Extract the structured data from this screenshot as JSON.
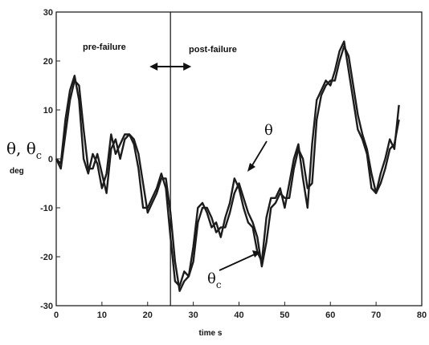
{
  "chart_data": {
    "type": "line",
    "xlabel": "time s",
    "ylabel_symbol": "θ, θ",
    "ylabel_subscript": "c",
    "ylabel_unit": "deg",
    "xlim": [
      0,
      80
    ],
    "ylim": [
      -30,
      30
    ],
    "x_ticks": [
      "0",
      "10",
      "20",
      "30",
      "40",
      "50",
      "60",
      "70",
      "80"
    ],
    "y_ticks": [
      "30",
      "20",
      "10",
      "0",
      "-10",
      "-20",
      "-30"
    ],
    "grid": false,
    "annotations": {
      "pre_failure": "pre-failure",
      "post_failure": "post-failure",
      "failure_time": 25,
      "theta_label": "θ",
      "theta_c_label": "θ",
      "theta_c_subscript": "c"
    },
    "series": [
      {
        "name": "θ",
        "x": [
          0,
          1,
          2,
          3,
          4,
          5,
          6,
          7,
          8,
          9,
          10,
          11,
          12,
          13,
          14,
          15,
          16,
          17,
          18,
          19,
          20,
          21,
          22,
          23,
          24,
          25,
          26,
          27,
          28,
          29,
          30,
          31,
          32,
          33,
          34,
          35,
          36,
          37,
          38,
          39,
          40,
          41,
          42,
          43,
          44,
          45,
          46,
          47,
          48,
          49,
          50,
          51,
          52,
          53,
          54,
          55,
          56,
          57,
          58,
          59,
          60,
          61,
          62,
          63,
          64,
          65,
          66,
          67,
          68,
          69,
          70,
          71,
          72,
          73,
          74,
          75
        ],
        "values": [
          0,
          -1,
          8,
          14,
          17,
          12,
          0,
          -3,
          1,
          -1,
          -6,
          -3,
          5,
          1,
          3,
          5,
          5,
          3,
          -2,
          -10,
          -10,
          -8,
          -6,
          -3,
          -6,
          -16,
          -25,
          -26,
          -23,
          -24,
          -18,
          -10,
          -9,
          -11,
          -14,
          -13,
          -16,
          -12,
          -9,
          -4,
          -6,
          -10,
          -13,
          -14,
          -19,
          -21,
          -12,
          -8,
          -8,
          -6,
          -10,
          -5,
          0,
          3,
          -4,
          -10,
          3,
          12,
          14,
          16,
          15,
          18,
          22,
          24,
          18,
          12,
          6,
          4,
          1,
          -6,
          -7,
          -3,
          0,
          4,
          2,
          11
        ]
      },
      {
        "name": "θc",
        "x": [
          0,
          1,
          2,
          3,
          4,
          5,
          6,
          7,
          8,
          9,
          10,
          11,
          12,
          13,
          14,
          15,
          16,
          17,
          18,
          19,
          20,
          21,
          22,
          23,
          24,
          25,
          26,
          27,
          28,
          29,
          30,
          31,
          32,
          33,
          34,
          35,
          36,
          37,
          38,
          39,
          40,
          41,
          42,
          43,
          44,
          45,
          46,
          47,
          48,
          49,
          50,
          51,
          52,
          53,
          54,
          55,
          56,
          57,
          58,
          59,
          60,
          61,
          62,
          63,
          64,
          65,
          66,
          67,
          68,
          69,
          70,
          71,
          72,
          73,
          74,
          75
        ],
        "values": [
          0,
          -2,
          5,
          12,
          16,
          15,
          6,
          -2,
          -2,
          1,
          -3,
          -7,
          2,
          4,
          0,
          4,
          5,
          4,
          1,
          -5,
          -11,
          -9,
          -7,
          -4,
          -4,
          -11,
          -21,
          -27,
          -25,
          -24,
          -21,
          -13,
          -10,
          -10,
          -12,
          -15,
          -14,
          -14,
          -11,
          -7,
          -5,
          -8,
          -11,
          -13,
          -16,
          -22,
          -17,
          -10,
          -9,
          -7,
          -8,
          -8,
          -2,
          2,
          0,
          -6,
          -5,
          8,
          13,
          15,
          16,
          16,
          20,
          23,
          21,
          15,
          9,
          5,
          2,
          -3,
          -7,
          -5,
          -2,
          2,
          3,
          8
        ]
      }
    ]
  }
}
